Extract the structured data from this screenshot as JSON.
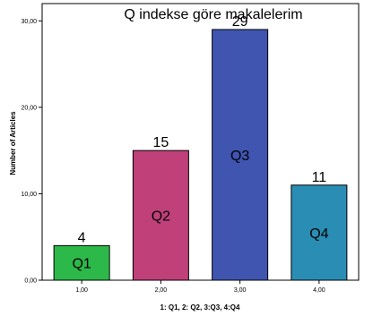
{
  "chart_data": {
    "type": "bar",
    "title": "Q indekse göre makalelerim",
    "xlabel": "1: Q1, 2: Q2, 3:Q3, 4:Q4",
    "ylabel": "Number of Articles",
    "categories": [
      "1,00",
      "2,00",
      "3,00",
      "4,00"
    ],
    "values": [
      4,
      15,
      29,
      11
    ],
    "value_labels": [
      "4",
      "15",
      "29",
      "11"
    ],
    "bar_labels": [
      "Q1",
      "Q2",
      "Q3",
      "Q4"
    ],
    "bar_colors": [
      "#2db84a",
      "#c0407a",
      "#3f55b0",
      "#2a8db4"
    ],
    "ylim": [
      0,
      32
    ],
    "yticks": [
      0,
      10,
      20,
      30
    ],
    "ytick_labels": [
      "0,00",
      "10,00",
      "20,00",
      "30,00"
    ],
    "grid": false,
    "legend": false
  }
}
